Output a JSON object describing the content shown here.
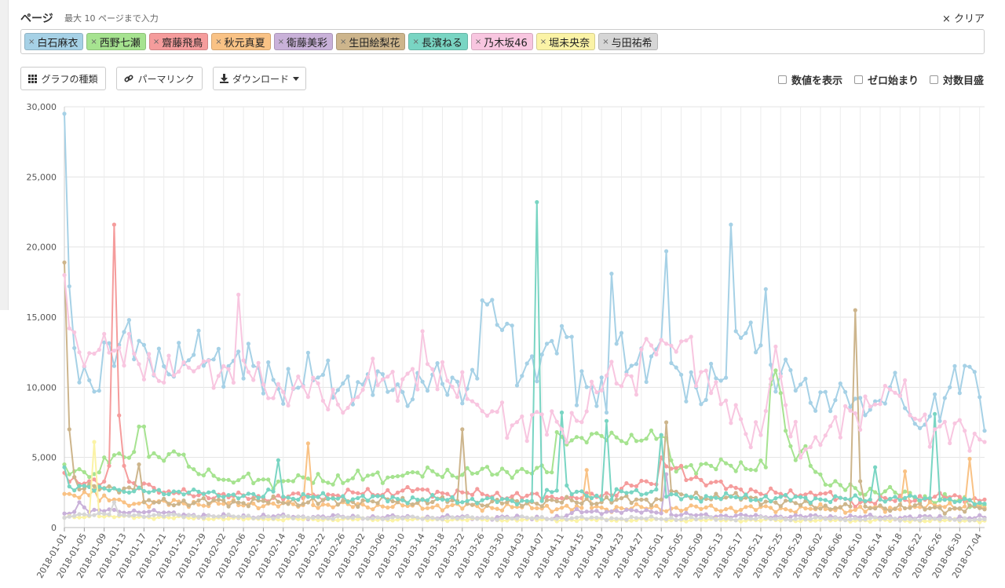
{
  "header": {
    "title": "ページ",
    "subtitle": "最大 10 ページまで入力",
    "clear_label": "クリア",
    "clear_icon": "×"
  },
  "tags": [
    {
      "label": "白石麻衣",
      "color": "#a6d1e6"
    },
    {
      "label": "西野七瀬",
      "color": "#a6e390"
    },
    {
      "label": "齋藤飛鳥",
      "color": "#f59c9c"
    },
    {
      "label": "秋元真夏",
      "color": "#f9c285"
    },
    {
      "label": "衛藤美彩",
      "color": "#c9b1d9"
    },
    {
      "label": "生田絵梨花",
      "color": "#cdb58c"
    },
    {
      "label": "長濱ねる",
      "color": "#79d5c3"
    },
    {
      "label": "乃木坂46",
      "color": "#f8c6e0"
    },
    {
      "label": "堀未央奈",
      "color": "#fbf3a6"
    },
    {
      "label": "与田祐希",
      "color": "#d6d6d6"
    }
  ],
  "toolbar": {
    "chart_type_label": "グラフの種類",
    "permalink_label": "パーマリンク",
    "download_label": "ダウンロード"
  },
  "options": {
    "show_values": "数値を表示",
    "zero_start": "ゼロ始まり",
    "log_scale": "対数目盛"
  },
  "chart_data": {
    "type": "line",
    "title": "",
    "xlabel": "",
    "ylabel": "",
    "ylim": [
      0,
      30000
    ],
    "y_ticks": [
      "0",
      "5,000",
      "10,000",
      "15,000",
      "20,000",
      "25,000",
      "30,000"
    ],
    "start_date": "2018-01-01",
    "num_days": 186,
    "x_tick_labels": [
      "2018-01-01",
      "2018-01-05",
      "2018-01-09",
      "2018-01-13",
      "2018-01-17",
      "2018-01-21",
      "2018-01-25",
      "2018-01-29",
      "2018-02-02",
      "2018-02-06",
      "2018-02-10",
      "2018-02-14",
      "2018-02-18",
      "2018-02-22",
      "2018-02-26",
      "2018-03-02",
      "2018-03-06",
      "2018-03-10",
      "2018-03-14",
      "2018-03-18",
      "2018-03-22",
      "2018-03-26",
      "2018-03-30",
      "2018-04-03",
      "2018-04-07",
      "2018-04-11",
      "2018-04-15",
      "2018-04-19",
      "2018-04-23",
      "2018-04-27",
      "2018-05-01",
      "2018-05-05",
      "2018-05-09",
      "2018-05-13",
      "2018-05-17",
      "2018-05-21",
      "2018-05-25",
      "2018-05-29",
      "2018-06-02",
      "2018-06-06",
      "2018-06-10",
      "2018-06-14",
      "2018-06-18",
      "2018-06-22",
      "2018-06-26",
      "2018-06-30",
      "2018-07-04"
    ],
    "series": [
      {
        "name": "白石麻衣",
        "color": "#a6d1e6",
        "base": 7800,
        "amp": 1600,
        "knots": [
          [
            0,
            29500
          ],
          [
            1,
            17200
          ],
          [
            2,
            12800
          ],
          [
            5,
            10500
          ],
          [
            8,
            13200
          ],
          [
            13,
            14800
          ],
          [
            14,
            12000
          ],
          [
            37,
            13100
          ],
          [
            60,
            10200
          ],
          [
            66,
            9800
          ],
          [
            79,
            10400
          ],
          [
            81,
            9900
          ],
          [
            84,
            16200
          ],
          [
            85,
            15900
          ],
          [
            90,
            14400
          ],
          [
            93,
            11700
          ],
          [
            97,
            13100
          ],
          [
            98,
            13300
          ],
          [
            102,
            13600
          ],
          [
            106,
            10000
          ],
          [
            109,
            8200
          ],
          [
            110,
            18100
          ],
          [
            111,
            13100
          ],
          [
            118,
            12200
          ],
          [
            121,
            19700
          ],
          [
            128,
            8800
          ],
          [
            134,
            21600
          ],
          [
            135,
            14000
          ],
          [
            141,
            17000
          ],
          [
            142,
            11600
          ],
          [
            148,
            10200
          ],
          [
            158,
            8600
          ],
          [
            162,
            8400
          ],
          [
            166,
            10000
          ],
          [
            171,
            7400
          ],
          [
            178,
            10000
          ],
          [
            183,
            11100
          ],
          [
            184,
            9300
          ],
          [
            185,
            6900
          ]
        ]
      },
      {
        "name": "西野七瀬",
        "color": "#a6e390",
        "base": 2900,
        "amp": 450,
        "knots": [
          [
            0,
            4500
          ],
          [
            5,
            3600
          ],
          [
            8,
            5000
          ],
          [
            15,
            7200
          ],
          [
            16,
            7200
          ],
          [
            23,
            5200
          ],
          [
            24,
            5200
          ],
          [
            33,
            3400
          ],
          [
            46,
            3300
          ],
          [
            68,
            3700
          ],
          [
            88,
            4200
          ],
          [
            91,
            4000
          ],
          [
            99,
            6800
          ],
          [
            121,
            6400
          ],
          [
            130,
            4400
          ],
          [
            142,
            10200
          ],
          [
            143,
            11200
          ],
          [
            145,
            6900
          ],
          [
            147,
            4800
          ],
          [
            149,
            5800
          ],
          [
            150,
            4400
          ],
          [
            154,
            3000
          ],
          [
            185,
            1600
          ]
        ]
      },
      {
        "name": "齋藤飛鳥",
        "color": "#f59c9c",
        "base": 2300,
        "amp": 300,
        "knots": [
          [
            0,
            3900
          ],
          [
            5,
            3300
          ],
          [
            9,
            4400
          ],
          [
            10,
            21600
          ],
          [
            11,
            8000
          ],
          [
            12,
            4400
          ],
          [
            20,
            2500
          ],
          [
            40,
            2100
          ],
          [
            70,
            2600
          ],
          [
            100,
            2100
          ],
          [
            110,
            2300
          ],
          [
            120,
            5000
          ],
          [
            124,
            4400
          ],
          [
            127,
            3600
          ],
          [
            140,
            2400
          ],
          [
            150,
            2500
          ],
          [
            160,
            1800
          ],
          [
            175,
            2200
          ],
          [
            185,
            2000
          ]
        ]
      },
      {
        "name": "秋元真夏",
        "color": "#f9c285",
        "base": 1450,
        "amp": 260,
        "knots": [
          [
            0,
            2400
          ],
          [
            6,
            2700
          ],
          [
            12,
            1800
          ],
          [
            48,
            1600
          ],
          [
            49,
            6000
          ],
          [
            50,
            1600
          ],
          [
            104,
            1400
          ],
          [
            105,
            4100
          ],
          [
            106,
            1400
          ],
          [
            168,
            1300
          ],
          [
            169,
            4000
          ],
          [
            170,
            1500
          ],
          [
            181,
            1500
          ],
          [
            182,
            4900
          ],
          [
            183,
            1700
          ],
          [
            185,
            1400
          ]
        ]
      },
      {
        "name": "衛藤美彩",
        "color": "#c9b1d9",
        "base": 850,
        "amp": 140,
        "knots": [
          [
            0,
            1000
          ],
          [
            3,
            1800
          ],
          [
            5,
            1100
          ],
          [
            9,
            1300
          ],
          [
            30,
            800
          ],
          [
            100,
            700
          ],
          [
            121,
            3800
          ],
          [
            122,
            900
          ],
          [
            140,
            800
          ],
          [
            185,
            700
          ]
        ]
      },
      {
        "name": "生田絵梨花",
        "color": "#cdb58c",
        "base": 1650,
        "amp": 300,
        "knots": [
          [
            0,
            18900
          ],
          [
            1,
            7000
          ],
          [
            2,
            3600
          ],
          [
            10,
            2800
          ],
          [
            15,
            4500
          ],
          [
            16,
            1800
          ],
          [
            79,
            1900
          ],
          [
            80,
            7000
          ],
          [
            81,
            1700
          ],
          [
            120,
            2000
          ],
          [
            121,
            7500
          ],
          [
            122,
            2600
          ],
          [
            155,
            1400
          ],
          [
            158,
            1500
          ],
          [
            159,
            15500
          ],
          [
            160,
            3300
          ],
          [
            161,
            1500
          ],
          [
            185,
            1300
          ]
        ]
      },
      {
        "name": "長濱ねる",
        "color": "#79d5c3",
        "base": 1900,
        "amp": 250,
        "knots": [
          [
            0,
            4300
          ],
          [
            10,
            2800
          ],
          [
            40,
            2200
          ],
          [
            43,
            4800
          ],
          [
            44,
            2200
          ],
          [
            90,
            1900
          ],
          [
            94,
            1900
          ],
          [
            95,
            23200
          ],
          [
            96,
            1900
          ],
          [
            100,
            8200
          ],
          [
            101,
            3000
          ],
          [
            108,
            2000
          ],
          [
            109,
            7600
          ],
          [
            110,
            2000
          ],
          [
            120,
            6600
          ],
          [
            121,
            2200
          ],
          [
            162,
            2000
          ],
          [
            163,
            4300
          ],
          [
            164,
            2000
          ],
          [
            174,
            2100
          ],
          [
            175,
            8100
          ],
          [
            176,
            2000
          ],
          [
            185,
            1700
          ]
        ]
      },
      {
        "name": "乃木坂46",
        "color": "#f8c6e0",
        "base": 8000,
        "amp": 1400,
        "knots": [
          [
            0,
            18000
          ],
          [
            1,
            14200
          ],
          [
            3,
            12500
          ],
          [
            8,
            13800
          ],
          [
            14,
            12400
          ],
          [
            25,
            11400
          ],
          [
            35,
            16600
          ],
          [
            40,
            10200
          ],
          [
            58,
            9100
          ],
          [
            72,
            14000
          ],
          [
            84,
            8300
          ],
          [
            100,
            7000
          ],
          [
            116,
            12700
          ],
          [
            121,
            13100
          ],
          [
            126,
            13600
          ],
          [
            132,
            8800
          ],
          [
            140,
            6600
          ],
          [
            143,
            12900
          ],
          [
            146,
            6500
          ],
          [
            152,
            5900
          ],
          [
            165,
            10100
          ],
          [
            175,
            7000
          ],
          [
            185,
            6100
          ]
        ]
      },
      {
        "name": "堀未央奈",
        "color": "#fbf3a6",
        "base": 600,
        "amp": 90,
        "knots": [
          [
            0,
            700
          ],
          [
            5,
            800
          ],
          [
            6,
            6100
          ],
          [
            7,
            800
          ],
          [
            40,
            600
          ],
          [
            185,
            500
          ]
        ]
      },
      {
        "name": "与田祐希",
        "color": "#d6d6d6",
        "base": 700,
        "amp": 110,
        "knots": [
          [
            0,
            700
          ],
          [
            10,
            1800
          ],
          [
            11,
            900
          ],
          [
            50,
            700
          ],
          [
            185,
            600
          ]
        ]
      }
    ]
  }
}
